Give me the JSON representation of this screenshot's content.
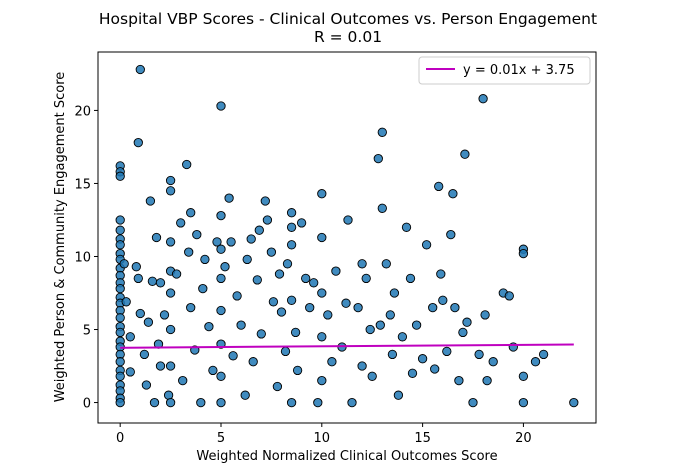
{
  "chart_data": {
    "type": "scatter",
    "title": "Hospital VBP Scores - Clinical Outcomes vs. Person Engagement",
    "subtitle": "R = 0.01",
    "xlabel": "Weighted Normalized Clinical Outcomes Score",
    "ylabel": "Weighted Person & Community Engagement Score",
    "xlim": [
      -1.1,
      23.6
    ],
    "ylim": [
      -1.4,
      24.0
    ],
    "xticks": [
      0,
      5,
      10,
      15,
      20
    ],
    "yticks": [
      0,
      5,
      10,
      15,
      20
    ],
    "grid": false,
    "legend": {
      "position": "top-right",
      "entries": [
        "y = 0.01x + 3.75"
      ]
    },
    "colors": {
      "points": "#1f77b4",
      "point_edge": "#000000",
      "trend": "#bf00bf"
    },
    "trendline": {
      "label": "y = 0.01x + 3.75",
      "slope": 0.01,
      "intercept": 3.75,
      "x_range": [
        0,
        22.5
      ]
    },
    "series": [
      {
        "values": [
          [
            0.0,
            16.2
          ],
          [
            0.0,
            15.8
          ],
          [
            0.0,
            15.5
          ],
          [
            0.0,
            12.5
          ],
          [
            0.0,
            11.8
          ],
          [
            0.0,
            11.2
          ],
          [
            0.0,
            10.8
          ],
          [
            0.0,
            10.2
          ],
          [
            0.0,
            9.8
          ],
          [
            0.0,
            9.2
          ],
          [
            0.0,
            8.7
          ],
          [
            0.0,
            8.2
          ],
          [
            0.0,
            7.8
          ],
          [
            0.0,
            7.2
          ],
          [
            0.0,
            6.8
          ],
          [
            0.0,
            6.3
          ],
          [
            0.0,
            5.8
          ],
          [
            0.0,
            5.2
          ],
          [
            0.0,
            4.8
          ],
          [
            0.0,
            4.2
          ],
          [
            0.0,
            3.8
          ],
          [
            0.0,
            3.3
          ],
          [
            0.0,
            2.8
          ],
          [
            0.0,
            2.2
          ],
          [
            0.0,
            1.8
          ],
          [
            0.0,
            1.2
          ],
          [
            0.0,
            0.8
          ],
          [
            0.0,
            0.3
          ],
          [
            0.0,
            0.0
          ],
          [
            0.2,
            9.5
          ],
          [
            0.3,
            6.9
          ],
          [
            0.5,
            4.5
          ],
          [
            0.5,
            2.1
          ],
          [
            0.8,
            9.3
          ],
          [
            1.0,
            22.8
          ],
          [
            0.9,
            17.8
          ],
          [
            0.9,
            8.5
          ],
          [
            1.0,
            6.1
          ],
          [
            1.2,
            3.3
          ],
          [
            1.3,
            1.2
          ],
          [
            1.4,
            5.5
          ],
          [
            1.5,
            13.8
          ],
          [
            1.6,
            8.3
          ],
          [
            1.7,
            0.0
          ],
          [
            1.8,
            11.3
          ],
          [
            1.9,
            4.0
          ],
          [
            2.0,
            8.2
          ],
          [
            2.0,
            2.5
          ],
          [
            2.2,
            6.0
          ],
          [
            2.4,
            0.5
          ],
          [
            2.5,
            15.2
          ],
          [
            2.5,
            14.5
          ],
          [
            2.5,
            11.0
          ],
          [
            2.5,
            9.0
          ],
          [
            2.5,
            7.5
          ],
          [
            2.5,
            5.0
          ],
          [
            2.5,
            2.5
          ],
          [
            2.5,
            0.0
          ],
          [
            2.8,
            8.8
          ],
          [
            3.0,
            12.3
          ],
          [
            3.1,
            1.5
          ],
          [
            3.3,
            16.3
          ],
          [
            3.4,
            10.3
          ],
          [
            3.5,
            13.0
          ],
          [
            3.5,
            6.5
          ],
          [
            3.7,
            3.6
          ],
          [
            3.8,
            11.5
          ],
          [
            4.0,
            0.0
          ],
          [
            4.1,
            7.8
          ],
          [
            4.2,
            9.8
          ],
          [
            4.4,
            5.2
          ],
          [
            4.6,
            2.2
          ],
          [
            4.8,
            11.0
          ],
          [
            5.0,
            20.3
          ],
          [
            5.0,
            12.8
          ],
          [
            5.0,
            10.5
          ],
          [
            5.0,
            8.5
          ],
          [
            5.0,
            6.3
          ],
          [
            5.0,
            4.0
          ],
          [
            5.0,
            1.8
          ],
          [
            5.0,
            0.0
          ],
          [
            5.2,
            9.3
          ],
          [
            5.4,
            14.0
          ],
          [
            5.5,
            11.0
          ],
          [
            5.6,
            3.2
          ],
          [
            5.8,
            7.3
          ],
          [
            6.0,
            5.3
          ],
          [
            6.2,
            0.5
          ],
          [
            6.3,
            9.8
          ],
          [
            6.5,
            11.2
          ],
          [
            6.6,
            2.8
          ],
          [
            6.8,
            8.4
          ],
          [
            6.9,
            11.8
          ],
          [
            7.0,
            4.7
          ],
          [
            7.2,
            13.8
          ],
          [
            7.3,
            12.5
          ],
          [
            7.5,
            10.3
          ],
          [
            7.6,
            6.9
          ],
          [
            7.8,
            1.1
          ],
          [
            7.9,
            8.8
          ],
          [
            8.0,
            6.2
          ],
          [
            8.2,
            3.5
          ],
          [
            8.3,
            9.5
          ],
          [
            8.5,
            12.0
          ],
          [
            8.5,
            13.0
          ],
          [
            8.5,
            10.8
          ],
          [
            8.5,
            7.0
          ],
          [
            8.5,
            0.0
          ],
          [
            8.7,
            4.8
          ],
          [
            8.8,
            2.2
          ],
          [
            9.0,
            12.3
          ],
          [
            9.2,
            8.5
          ],
          [
            9.4,
            6.5
          ],
          [
            9.6,
            8.2
          ],
          [
            9.8,
            0.0
          ],
          [
            10.0,
            14.3
          ],
          [
            10.0,
            11.3
          ],
          [
            10.0,
            7.5
          ],
          [
            10.0,
            4.5
          ],
          [
            10.0,
            1.5
          ],
          [
            10.3,
            6.0
          ],
          [
            10.5,
            2.8
          ],
          [
            10.7,
            9.0
          ],
          [
            11.0,
            3.8
          ],
          [
            11.2,
            6.8
          ],
          [
            11.3,
            12.5
          ],
          [
            11.5,
            0.0
          ],
          [
            11.8,
            6.5
          ],
          [
            12.0,
            9.5
          ],
          [
            12.0,
            2.5
          ],
          [
            12.2,
            8.5
          ],
          [
            12.4,
            5.0
          ],
          [
            12.5,
            1.8
          ],
          [
            12.8,
            16.7
          ],
          [
            13.0,
            18.5
          ],
          [
            13.0,
            13.3
          ],
          [
            12.9,
            5.3
          ],
          [
            13.2,
            9.5
          ],
          [
            13.4,
            6.0
          ],
          [
            13.5,
            3.3
          ],
          [
            13.6,
            7.5
          ],
          [
            13.8,
            0.5
          ],
          [
            14.0,
            4.5
          ],
          [
            14.2,
            12.0
          ],
          [
            14.4,
            8.5
          ],
          [
            14.5,
            2.0
          ],
          [
            14.7,
            5.3
          ],
          [
            15.0,
            3.0
          ],
          [
            15.2,
            10.8
          ],
          [
            15.5,
            6.5
          ],
          [
            15.6,
            2.3
          ],
          [
            15.8,
            14.8
          ],
          [
            15.9,
            8.8
          ],
          [
            16.0,
            7.0
          ],
          [
            16.2,
            3.5
          ],
          [
            16.4,
            11.5
          ],
          [
            16.5,
            14.3
          ],
          [
            16.6,
            6.5
          ],
          [
            16.8,
            1.5
          ],
          [
            17.1,
            17.0
          ],
          [
            17.0,
            4.8
          ],
          [
            17.2,
            5.5
          ],
          [
            17.5,
            0.0
          ],
          [
            17.8,
            3.3
          ],
          [
            18.0,
            20.8
          ],
          [
            18.1,
            6.0
          ],
          [
            18.2,
            1.5
          ],
          [
            18.5,
            2.8
          ],
          [
            19.0,
            7.5
          ],
          [
            19.3,
            7.3
          ],
          [
            19.5,
            3.8
          ],
          [
            20.0,
            10.5
          ],
          [
            20.0,
            10.2
          ],
          [
            20.0,
            1.8
          ],
          [
            20.0,
            0.0
          ],
          [
            20.6,
            2.8
          ],
          [
            21.0,
            3.3
          ],
          [
            22.5,
            0.0
          ]
        ]
      }
    ]
  }
}
